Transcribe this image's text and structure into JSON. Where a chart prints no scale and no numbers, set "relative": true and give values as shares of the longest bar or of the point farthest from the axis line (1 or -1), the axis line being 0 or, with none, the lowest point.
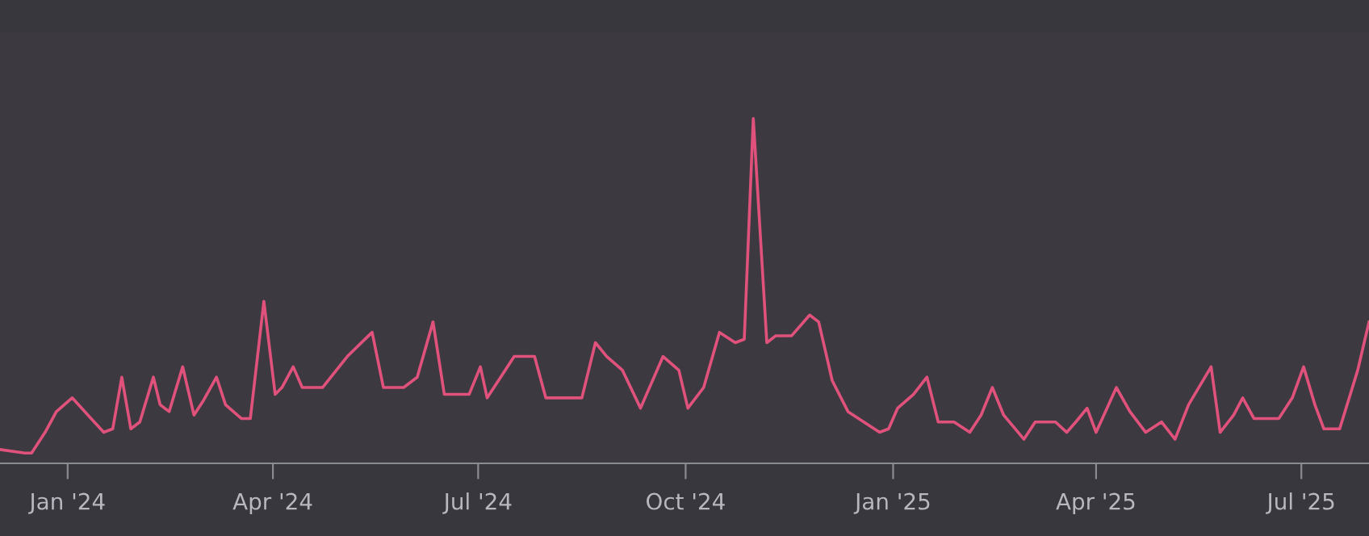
{
  "chart_data": {
    "type": "line",
    "relative": true,
    "xlim": [
      "2023-12-02",
      "2025-07-31"
    ],
    "xticks": [
      {
        "value": "2024-01-01",
        "label": "Jan '24"
      },
      {
        "value": "2024-04-01",
        "label": "Apr '24"
      },
      {
        "value": "2024-07-01",
        "label": "Jul '24"
      },
      {
        "value": "2024-10-01",
        "label": "Oct '24"
      },
      {
        "value": "2025-01-01",
        "label": "Jan '25"
      },
      {
        "value": "2025-04-01",
        "label": "Apr '25"
      },
      {
        "value": "2025-07-01",
        "label": "Jul '25"
      }
    ],
    "grid": false,
    "legend": false,
    "marker": "none",
    "line_style": "solid",
    "x": [
      "2023-12-02",
      "2023-12-13",
      "2023-12-16",
      "2023-12-22",
      "2023-12-27",
      "2024-01-03",
      "2024-01-10",
      "2024-01-17",
      "2024-01-21",
      "2024-01-25",
      "2024-01-29",
      "2024-02-02",
      "2024-02-08",
      "2024-02-11",
      "2024-02-15",
      "2024-02-21",
      "2024-02-26",
      "2024-03-01",
      "2024-03-07",
      "2024-03-11",
      "2024-03-18",
      "2024-03-22",
      "2024-03-28",
      "2024-04-02",
      "2024-04-05",
      "2024-04-10",
      "2024-04-14",
      "2024-04-23",
      "2024-05-04",
      "2024-05-15",
      "2024-05-20",
      "2024-05-29",
      "2024-06-04",
      "2024-06-11",
      "2024-06-16",
      "2024-06-27",
      "2024-07-02",
      "2024-07-05",
      "2024-07-11",
      "2024-07-17",
      "2024-07-26",
      "2024-07-31",
      "2024-08-16",
      "2024-08-22",
      "2024-08-27",
      "2024-09-03",
      "2024-09-11",
      "2024-09-21",
      "2024-09-28",
      "2024-10-02",
      "2024-10-09",
      "2024-10-16",
      "2024-10-23",
      "2024-10-27",
      "2024-10-31",
      "2024-11-06",
      "2024-11-10",
      "2024-11-17",
      "2024-11-25",
      "2024-11-29",
      "2024-12-05",
      "2024-12-12",
      "2024-12-19",
      "2024-12-26",
      "2024-12-30",
      "2025-01-03",
      "2025-01-10",
      "2025-01-16",
      "2025-01-21",
      "2025-01-28",
      "2025-02-04",
      "2025-02-09",
      "2025-02-14",
      "2025-02-19",
      "2025-02-28",
      "2025-03-05",
      "2025-03-14",
      "2025-03-19",
      "2025-03-23",
      "2025-03-28",
      "2025-04-01",
      "2025-04-10",
      "2025-04-16",
      "2025-04-23",
      "2025-04-30",
      "2025-05-06",
      "2025-05-12",
      "2025-05-22",
      "2025-05-26",
      "2025-06-01",
      "2025-06-05",
      "2025-06-10",
      "2025-06-21",
      "2025-06-27",
      "2025-07-02",
      "2025-07-07",
      "2025-07-11",
      "2025-07-18",
      "2025-07-26",
      "2025-07-31"
    ],
    "series": [
      {
        "color": "#e0527c",
        "values": [
          0.04,
          0.03,
          0.03,
          0.09,
          0.15,
          0.19,
          0.14,
          0.09,
          0.1,
          0.25,
          0.1,
          0.12,
          0.25,
          0.17,
          0.15,
          0.28,
          0.14,
          0.18,
          0.25,
          0.17,
          0.13,
          0.13,
          0.47,
          0.2,
          0.22,
          0.28,
          0.22,
          0.22,
          0.31,
          0.38,
          0.22,
          0.22,
          0.25,
          0.41,
          0.2,
          0.2,
          0.28,
          0.19,
          0.25,
          0.31,
          0.31,
          0.19,
          0.19,
          0.35,
          0.31,
          0.27,
          0.16,
          0.31,
          0.27,
          0.16,
          0.22,
          0.38,
          0.35,
          0.36,
          1,
          0.35,
          0.37,
          0.37,
          0.43,
          0.41,
          0.24,
          0.15,
          0.12,
          0.09,
          0.1,
          0.16,
          0.2,
          0.25,
          0.12,
          0.12,
          0.09,
          0.14,
          0.22,
          0.14,
          0.07,
          0.12,
          0.12,
          0.09,
          0.12,
          0.16,
          0.09,
          0.22,
          0.15,
          0.09,
          0.12,
          0.07,
          0.17,
          0.28,
          0.09,
          0.14,
          0.19,
          0.13,
          0.13,
          0.19,
          0.28,
          0.17,
          0.1,
          0.1,
          0.27,
          0.41
        ]
      }
    ]
  }
}
